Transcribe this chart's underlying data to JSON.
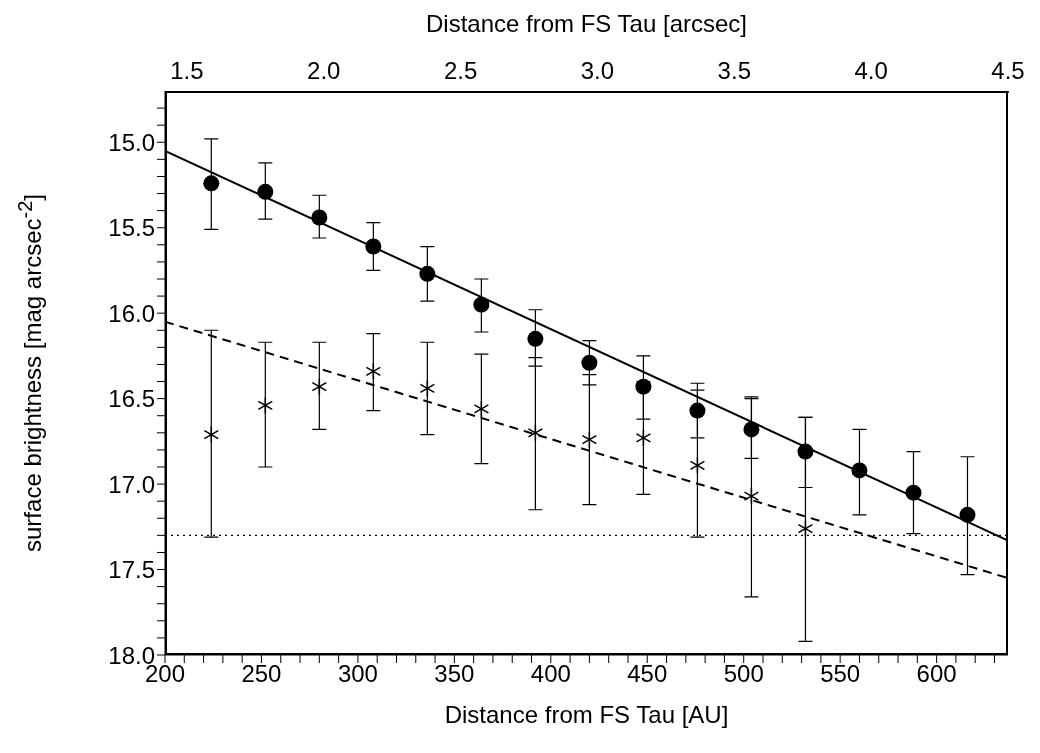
{
  "chart_data": {
    "type": "scatter",
    "xlabel": "Distance from FS Tau [AU]",
    "x2label": "Distance from FS Tau [arcsec]",
    "ylabel": "surface brightness [mag arcsec$^{-2}$]",
    "xlim": [
      200,
      637
    ],
    "xticks": [
      200,
      {
        "value": 210,
        "label": null
      },
      {
        "value": 220,
        "label": null
      },
      {
        "value": 230,
        "label": null
      },
      {
        "value": 240,
        "label": null
      },
      250,
      {
        "value": 260,
        "label": null
      },
      {
        "value": 270,
        "label": null
      },
      {
        "value": 280,
        "label": null
      },
      {
        "value": 290,
        "label": null
      },
      300,
      {
        "value": 310,
        "label": null
      },
      {
        "value": 320,
        "label": null
      },
      {
        "value": 330,
        "label": null
      },
      {
        "value": 340,
        "label": null
      },
      350,
      {
        "value": 360,
        "label": null
      },
      {
        "value": 370,
        "label": null
      },
      {
        "value": 380,
        "label": null
      },
      {
        "value": 390,
        "label": null
      },
      400,
      {
        "value": 410,
        "label": null
      },
      {
        "value": 420,
        "label": null
      },
      {
        "value": 430,
        "label": null
      },
      {
        "value": 440,
        "label": null
      },
      450,
      {
        "value": 460,
        "label": null
      },
      {
        "value": 470,
        "label": null
      },
      {
        "value": 480,
        "label": null
      },
      {
        "value": 490,
        "label": null
      },
      500,
      {
        "value": 510,
        "label": null
      },
      {
        "value": 520,
        "label": null
      },
      {
        "value": 530,
        "label": null
      },
      {
        "value": 540,
        "label": null
      },
      550,
      {
        "value": 560,
        "label": null
      },
      {
        "value": 570,
        "label": null
      },
      {
        "value": 580,
        "label": null
      },
      {
        "value": 590,
        "label": null
      },
      600,
      {
        "value": 610,
        "label": null
      },
      {
        "value": 620,
        "label": null
      },
      {
        "value": 630,
        "label": null
      }
    ],
    "x2lim": [
      1.42,
      4.5
    ],
    "x2ticks": [
      {
        "value": 1.5,
        "label": "1.5"
      },
      {
        "value": 2,
        "label": "2.0"
      },
      {
        "value": 2.5,
        "label": "2.5"
      },
      {
        "value": 3,
        "label": "3.0"
      },
      {
        "value": 3.5,
        "label": "3.5"
      },
      {
        "value": 4,
        "label": "4.0"
      },
      {
        "value": 4.5,
        "label": "4.5"
      }
    ],
    "ylim": [
      18,
      14.7
    ],
    "yticks": [
      {
        "value": 14.8,
        "label": null
      },
      {
        "value": 14.9,
        "label": null
      },
      {
        "value": 15,
        "label": "15.0"
      },
      {
        "value": 15.1,
        "label": null
      },
      {
        "value": 15.2,
        "label": null
      },
      {
        "value": 15.3,
        "label": null
      },
      {
        "value": 15.4,
        "label": null
      },
      15.5,
      {
        "value": 15.6,
        "label": null
      },
      {
        "value": 15.7,
        "label": null
      },
      {
        "value": 15.8,
        "label": null
      },
      {
        "value": 15.9,
        "label": null
      },
      {
        "value": 16,
        "label": "16.0"
      },
      {
        "value": 16.1,
        "label": null
      },
      {
        "value": 16.2,
        "label": null
      },
      {
        "value": 16.3,
        "label": null
      },
      {
        "value": 16.4,
        "label": null
      },
      16.5,
      {
        "value": 16.6,
        "label": null
      },
      {
        "value": 16.7,
        "label": null
      },
      {
        "value": 16.8,
        "label": null
      },
      {
        "value": 16.9,
        "label": null
      },
      {
        "value": 17,
        "label": "17.0"
      },
      {
        "value": 17.1,
        "label": null
      },
      {
        "value": 17.2,
        "label": null
      },
      {
        "value": 17.3,
        "label": null
      },
      {
        "value": 17.4,
        "label": null
      },
      17.5,
      {
        "value": 17.6,
        "label": null
      },
      {
        "value": 17.7,
        "label": null
      },
      {
        "value": 17.8,
        "label": null
      },
      {
        "value": 17.9,
        "label": null
      },
      {
        "value": 18,
        "label": "18.0"
      }
    ],
    "ref_lines": [
      {
        "axis": "y",
        "value": 17.3,
        "color": "#000000",
        "line_style": "dotted"
      }
    ],
    "series": [
      {
        "marker": "circle",
        "color": "#000000",
        "x": [
          224,
          252,
          280,
          308,
          336,
          364,
          392,
          420,
          448,
          476,
          504,
          532,
          560,
          588,
          616
        ],
        "values": [
          15.24,
          15.29,
          15.44,
          15.61,
          15.77,
          15.95,
          16.15,
          16.29,
          16.43,
          16.57,
          16.68,
          16.81,
          16.92,
          17.05,
          17.18
        ],
        "errors": [
          [
            14.98,
            15.51
          ],
          [
            15.12,
            15.45
          ],
          [
            15.31,
            15.56
          ],
          [
            15.47,
            15.75
          ],
          [
            15.61,
            15.93
          ],
          [
            15.8,
            16.11
          ],
          [
            15.98,
            16.31
          ],
          [
            16.16,
            16.42
          ],
          [
            16.25,
            16.62
          ],
          [
            16.41,
            16.73
          ],
          [
            16.49,
            16.85
          ],
          [
            16.61,
            17.02
          ],
          [
            16.68,
            17.18
          ],
          [
            16.81,
            17.29
          ],
          [
            16.84,
            17.53
          ]
        ]
      },
      {
        "marker": "cross",
        "color": "#000000",
        "x": [
          224,
          252,
          280,
          308,
          336,
          364,
          392,
          420,
          448,
          476,
          504,
          532
        ],
        "values": [
          16.71,
          16.54,
          16.43,
          16.34,
          16.44,
          16.56,
          16.7,
          16.74,
          16.73,
          16.89,
          17.07,
          17.26
        ],
        "errors": [
          [
            16.1,
            17.31
          ],
          [
            16.17,
            16.9
          ],
          [
            16.17,
            16.68
          ],
          [
            16.12,
            16.57
          ],
          [
            16.17,
            16.71
          ],
          [
            16.24,
            16.88
          ],
          [
            16.26,
            17.15
          ],
          [
            16.36,
            17.12
          ],
          [
            16.4,
            17.06
          ],
          [
            16.45,
            17.31
          ],
          [
            16.5,
            17.66
          ],
          [
            16.61,
            17.92
          ]
        ]
      },
      {
        "type": "line",
        "line_style": "solid",
        "color": "#000000",
        "x": [
          200,
          637
        ],
        "values": [
          15.05,
          17.33
        ]
      },
      {
        "type": "line",
        "line_style": "dashed",
        "color": "#000000",
        "x": [
          200,
          637
        ],
        "values": [
          16.05,
          17.55
        ]
      }
    ]
  }
}
